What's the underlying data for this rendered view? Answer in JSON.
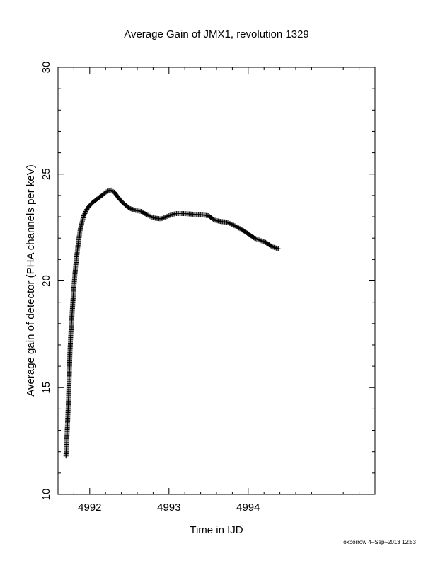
{
  "chart_data": {
    "type": "scatter",
    "title": "Average Gain of JMX1, revolution 1329",
    "xlabel": "Time in IJD",
    "ylabel": "Average gain of detector (PHA channels per keV)",
    "xlim": [
      4991.6,
      4995.6
    ],
    "ylim": [
      10,
      30
    ],
    "xticks": [
      4992,
      4993,
      4994
    ],
    "yticks": [
      10,
      15,
      20,
      25,
      30
    ],
    "grid": false,
    "marker": "+",
    "color": "#000000",
    "footer": "oxborrow  4–Sep–2013 12:53",
    "curve": [
      [
        4991.7,
        11.8
      ],
      [
        4991.71,
        12.5
      ],
      [
        4991.72,
        13.3
      ],
      [
        4991.73,
        14.2
      ],
      [
        4991.74,
        15.3
      ],
      [
        4991.75,
        16.6
      ],
      [
        4991.76,
        17.4
      ],
      [
        4991.78,
        18.6
      ],
      [
        4991.8,
        19.7
      ],
      [
        4991.82,
        20.6
      ],
      [
        4991.85,
        21.6
      ],
      [
        4991.88,
        22.4
      ],
      [
        4991.92,
        23.0
      ],
      [
        4991.97,
        23.4
      ],
      [
        4992.03,
        23.65
      ],
      [
        4992.1,
        23.85
      ],
      [
        4992.17,
        24.05
      ],
      [
        4992.22,
        24.2
      ],
      [
        4992.27,
        24.25
      ],
      [
        4992.31,
        24.15
      ],
      [
        4992.36,
        23.9
      ],
      [
        4992.42,
        23.65
      ],
      [
        4992.5,
        23.4
      ],
      [
        4992.58,
        23.3
      ],
      [
        4992.65,
        23.25
      ],
      [
        4992.72,
        23.1
      ],
      [
        4992.8,
        22.95
      ],
      [
        4992.9,
        22.9
      ],
      [
        4993.0,
        23.05
      ],
      [
        4993.08,
        23.15
      ],
      [
        4993.2,
        23.15
      ],
      [
        4993.3,
        23.12
      ],
      [
        4993.4,
        23.1
      ],
      [
        4993.5,
        23.05
      ],
      [
        4993.57,
        22.85
      ],
      [
        4993.65,
        22.78
      ],
      [
        4993.73,
        22.75
      ],
      [
        4993.82,
        22.6
      ],
      [
        4993.92,
        22.4
      ],
      [
        4994.0,
        22.2
      ],
      [
        4994.08,
        22.0
      ],
      [
        4994.15,
        21.9
      ],
      [
        4994.22,
        21.8
      ],
      [
        4994.3,
        21.6
      ],
      [
        4994.38,
        21.5
      ]
    ]
  }
}
